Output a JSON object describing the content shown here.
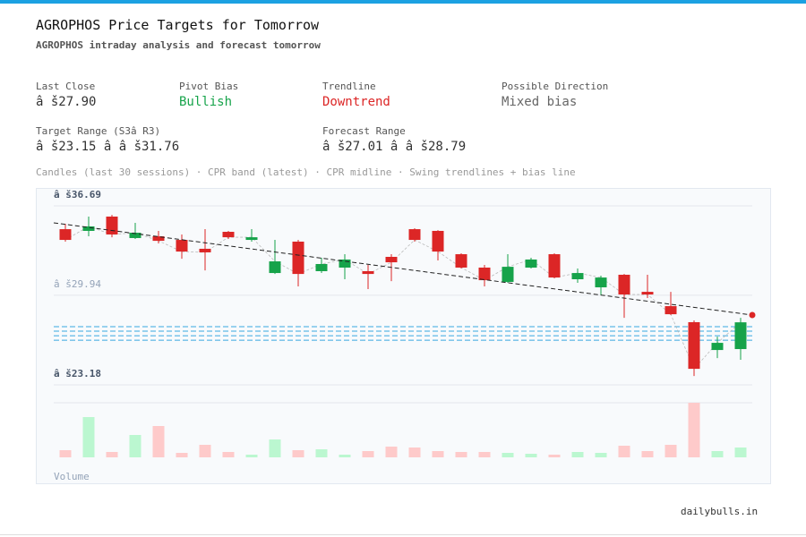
{
  "header": {
    "title": "AGROPHOS Price Targets for Tomorrow",
    "subtitle": "AGROPHOS intraday analysis and forecast tomorrow"
  },
  "stats": [
    {
      "label": "Last Close",
      "value": "â š27.90",
      "color": "#333333"
    },
    {
      "label": "Pivot Bias",
      "value": "Bullish",
      "color": "#16a34a"
    },
    {
      "label": "Trendline",
      "value": "Downtrend",
      "color": "#dc2626"
    },
    {
      "label": "Possible Direction",
      "value": "Mixed bias",
      "color": "#666666"
    },
    {
      "label": "Target Range (S3â  R3)",
      "value": "â š23.15 â   â š31.76",
      "color": "#333333"
    },
    {
      "label": "Forecast Range",
      "value": "â š27.01 â   â š28.79",
      "color": "#333333"
    }
  ],
  "chart_data": {
    "type": "candlestick",
    "caption": "Candles (last 30 sessions) · CPR band (latest) · CPR midline · Swing trendlines + bias line",
    "open": [
      34.93,
      34.8,
      35.88,
      34.26,
      34.39,
      34.12,
      33.45,
      34.73,
      34.12,
      31.62,
      33.99,
      31.76,
      32.03,
      31.76,
      32.84,
      34.93,
      34.8,
      33.04,
      32.03,
      30.95,
      32.03,
      33.04,
      31.15,
      30.54,
      31.49,
      30.2,
      29.12,
      27.91,
      25.81,
      25.88
    ],
    "high": [
      35.34,
      35.88,
      36.01,
      35.41,
      34.8,
      34.53,
      34.93,
      34.8,
      34.93,
      34.12,
      34.12,
      32.77,
      33.04,
      32.23,
      33.04,
      35.0,
      34.86,
      33.11,
      32.23,
      33.04,
      32.77,
      33.11,
      31.96,
      31.42,
      31.55,
      31.49,
      30.2,
      28.04,
      26.82,
      28.24
    ],
    "low": [
      33.99,
      34.39,
      34.32,
      34.19,
      33.85,
      32.7,
      31.82,
      34.19,
      33.99,
      31.55,
      30.61,
      31.62,
      31.15,
      30.41,
      31.01,
      33.99,
      32.57,
      31.96,
      30.61,
      30.88,
      31.96,
      31.22,
      30.88,
      29.94,
      28.24,
      29.73,
      28.45,
      23.85,
      25.2,
      25.07
    ],
    "close": [
      34.12,
      35.14,
      34.53,
      34.66,
      34.05,
      33.24,
      33.18,
      34.32,
      34.32,
      32.5,
      31.55,
      32.3,
      32.64,
      31.55,
      32.43,
      34.12,
      33.24,
      32.03,
      31.08,
      32.09,
      32.64,
      31.28,
      31.62,
      31.28,
      30.0,
      30.0,
      28.51,
      24.39,
      26.35,
      27.9
    ],
    "up_color": "#16a34a",
    "down_color": "#dc2626",
    "ylim": [
      23.18,
      36.69
    ],
    "yticks": [
      {
        "value": 36.69,
        "label": "â š36.69"
      },
      {
        "value": 29.94,
        "label": "â š29.94"
      },
      {
        "value": 23.18,
        "label": "â š23.18"
      }
    ],
    "cpr_levels": [
      27.57,
      27.23,
      26.89,
      26.55
    ],
    "cpr_color": "#38a8e0",
    "trendline": [
      35.41,
      28.45
    ],
    "volume": {
      "label": "Volume",
      "values": [
        8,
        45,
        6,
        25,
        35,
        5,
        14,
        6,
        3,
        20,
        8,
        9,
        3,
        7,
        12,
        11,
        7,
        6,
        6,
        5,
        4,
        3,
        6,
        5,
        13,
        7,
        14,
        61,
        7,
        11
      ]
    }
  },
  "footer": "dailybulls.in"
}
